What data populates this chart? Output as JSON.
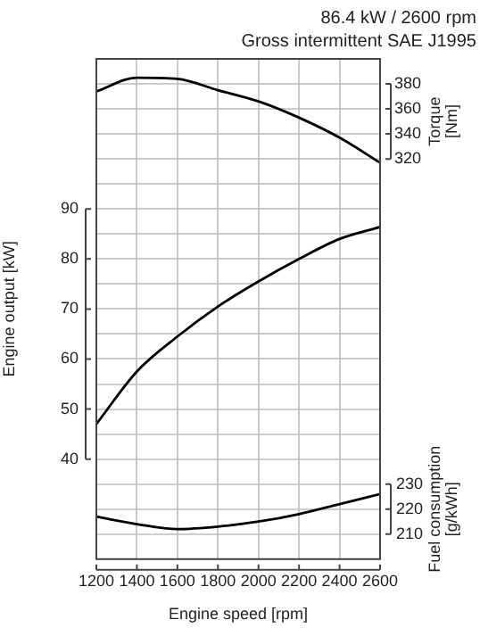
{
  "chart_data": {
    "type": "line",
    "title": "86.4 kW / 2600 rpm",
    "subtitle": "Gross intermittent SAE J1995",
    "xlabel": "Engine speed [rpm]",
    "ylabel": "Engine output [kW]",
    "y2label": "Torque [Nm]",
    "y3label": "Fuel consumption [g/kWh]",
    "x": [
      1200,
      1400,
      1600,
      1800,
      2000,
      2200,
      2400,
      2600
    ],
    "series": [
      {
        "color": "#000000",
        "values": [
          47,
          57.5,
          64.5,
          70.5,
          75.5,
          80,
          84,
          86.4
        ]
      },
      {
        "color": "#000000",
        "axis": "y2",
        "values": [
          374,
          385,
          384,
          375,
          366,
          353,
          337,
          317
        ]
      },
      {
        "color": "#000000",
        "axis": "y3",
        "values": [
          217,
          214,
          212,
          213,
          215,
          218,
          222,
          226
        ]
      }
    ],
    "xlim": [
      1200,
      2600
    ],
    "xticks": [
      1200,
      1400,
      1600,
      1800,
      2000,
      2200,
      2400,
      2600
    ],
    "ylim": [
      20,
      120
    ],
    "yticks": [
      {
        "value": 20,
        "label": null
      },
      {
        "value": 25,
        "label": null
      },
      {
        "value": 30,
        "label": null
      },
      {
        "value": 35,
        "label": null
      },
      40,
      {
        "value": 45,
        "label": null
      },
      50,
      {
        "value": 55,
        "label": null
      },
      60,
      {
        "value": 65,
        "label": null
      },
      70,
      {
        "value": 75,
        "label": null
      },
      80,
      {
        "value": 85,
        "label": null
      },
      90,
      {
        "value": 95,
        "label": null
      },
      {
        "value": 100,
        "label": null
      },
      {
        "value": 105,
        "label": null
      },
      {
        "value": 110,
        "label": null
      },
      {
        "value": 115,
        "label": null
      },
      {
        "value": 120,
        "label": null
      }
    ],
    "y2lim": [
      0,
      400
    ],
    "y2ticks": [
      320,
      340,
      360,
      380
    ],
    "y3lim": [
      200,
      400
    ],
    "y3ticks": [
      210,
      220,
      230
    ],
    "grid": true,
    "legend": false,
    "marker": "none",
    "line_style": "solid"
  }
}
